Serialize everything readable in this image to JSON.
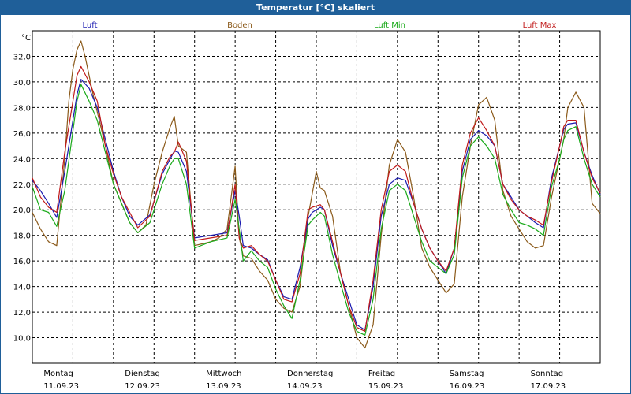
{
  "title": "Temperatur [°C] skaliert",
  "chart_data": {
    "type": "line",
    "title": "Temperatur [°C] skaliert",
    "ylabel": "°C",
    "ylim": [
      8,
      34
    ],
    "ytick_values": [
      10,
      12,
      14,
      16,
      18,
      20,
      22,
      24,
      26,
      28,
      30,
      32
    ],
    "ytick_labels": [
      "10,0",
      "12,0",
      "14,0",
      "16,0",
      "18,0",
      "20,0",
      "22,0",
      "24,0",
      "26,0",
      "28,0",
      "30,0",
      "32,0"
    ],
    "xlim": [
      0,
      7
    ],
    "x_unit": "days since Montag 11.09.23 00:00",
    "days": [
      {
        "name": "Montag",
        "date": "11.09.23"
      },
      {
        "name": "Dienstag",
        "date": "12.09.23"
      },
      {
        "name": "Mittwoch",
        "date": "13.09.23"
      },
      {
        "name": "Donnerstag",
        "date": "14.09.23"
      },
      {
        "name": "Freitag",
        "date": "15.09.23"
      },
      {
        "name": "Samstag",
        "date": "16.09.23"
      },
      {
        "name": "Sonntag",
        "date": "17.09.23"
      }
    ],
    "x_gridlines": [
      0.5,
      1,
      1.5,
      2,
      2.5,
      3,
      3.5,
      4,
      4.5,
      5,
      5.5,
      6,
      6.5,
      7
    ],
    "series": [
      {
        "name": "Luft",
        "color": "#1a1ab0",
        "x": [
          0,
          0.1,
          0.2,
          0.3,
          0.4,
          0.55,
          0.6,
          0.7,
          0.8,
          0.9,
          1.0,
          1.1,
          1.2,
          1.3,
          1.45,
          1.6,
          1.7,
          1.75,
          1.8,
          1.9,
          2.0,
          2.2,
          2.4,
          2.5,
          2.55,
          2.6,
          2.7,
          2.8,
          2.9,
          3.0,
          3.1,
          3.2,
          3.3,
          3.4,
          3.45,
          3.55,
          3.6,
          3.7,
          3.8,
          3.9,
          4.0,
          4.1,
          4.2,
          4.3,
          4.4,
          4.5,
          4.6,
          4.7,
          4.8,
          4.9,
          5.0,
          5.1,
          5.2,
          5.3,
          5.4,
          5.5,
          5.6,
          5.7,
          5.8,
          5.9,
          6.0,
          6.1,
          6.2,
          6.3,
          6.4,
          6.5,
          6.55,
          6.6,
          6.7,
          6.8,
          6.9,
          7.0
        ],
        "values": [
          22.3,
          21.5,
          20.5,
          19.4,
          23.0,
          29.0,
          30.2,
          29.5,
          28.0,
          25.5,
          23.0,
          21.0,
          19.5,
          18.8,
          19.6,
          22.8,
          24.0,
          24.6,
          24.5,
          23.0,
          17.8,
          18.0,
          18.2,
          21.5,
          19.5,
          17.2,
          17.0,
          16.5,
          16.1,
          14.5,
          13.2,
          13.0,
          15.5,
          19.3,
          19.8,
          20.2,
          20.0,
          17.2,
          15.0,
          13.0,
          11.0,
          10.6,
          14.0,
          19.5,
          22.0,
          22.5,
          22.3,
          20.5,
          18.5,
          17.0,
          16.0,
          15.0,
          17.0,
          23.0,
          25.5,
          26.2,
          25.8,
          25.0,
          22.0,
          21.0,
          20.0,
          19.5,
          19.0,
          18.6,
          22.5,
          25.0,
          26.3,
          26.7,
          26.8,
          24.5,
          22.7,
          21.2
        ]
      },
      {
        "name": "Boden",
        "color": "#8b5a1a",
        "x": [
          0,
          0.1,
          0.2,
          0.3,
          0.4,
          0.45,
          0.5,
          0.55,
          0.6,
          0.65,
          0.75,
          0.9,
          1.0,
          1.1,
          1.2,
          1.3,
          1.4,
          1.5,
          1.6,
          1.7,
          1.75,
          1.8,
          1.9,
          2.0,
          2.2,
          2.3,
          2.4,
          2.5,
          2.55,
          2.6,
          2.7,
          2.8,
          2.9,
          3.0,
          3.1,
          3.2,
          3.3,
          3.4,
          3.5,
          3.55,
          3.6,
          3.7,
          3.8,
          3.9,
          4.0,
          4.1,
          4.2,
          4.3,
          4.4,
          4.5,
          4.6,
          4.7,
          4.8,
          4.9,
          5.0,
          5.1,
          5.2,
          5.3,
          5.4,
          5.5,
          5.6,
          5.7,
          5.8,
          5.9,
          6.0,
          6.1,
          6.2,
          6.3,
          6.4,
          6.5,
          6.55,
          6.6,
          6.7,
          6.8,
          6.9,
          7.0
        ],
        "values": [
          19.8,
          18.5,
          17.5,
          17.2,
          24.0,
          28.5,
          31.0,
          32.5,
          33.2,
          32.0,
          29.0,
          25.0,
          22.0,
          20.5,
          19.0,
          18.2,
          18.8,
          22.0,
          24.5,
          26.5,
          27.3,
          25.0,
          24.5,
          17.2,
          17.5,
          17.8,
          18.5,
          23.4,
          17.8,
          16.4,
          16.2,
          15.2,
          14.5,
          13.0,
          12.3,
          12.0,
          14.0,
          19.5,
          23.0,
          21.7,
          21.5,
          19.5,
          15.0,
          12.5,
          10.0,
          9.2,
          11.0,
          18.0,
          23.5,
          25.5,
          24.5,
          21.0,
          17.0,
          15.5,
          14.5,
          13.5,
          14.2,
          21.0,
          25.0,
          28.2,
          28.8,
          27.0,
          21.5,
          19.5,
          18.5,
          17.5,
          17.0,
          17.2,
          21.0,
          24.0,
          25.5,
          28.0,
          29.2,
          28.0,
          20.5,
          19.7
        ]
      },
      {
        "name": "Luft Min",
        "color": "#1aaa1a",
        "x": [
          0,
          0.1,
          0.2,
          0.3,
          0.4,
          0.55,
          0.6,
          0.7,
          0.8,
          0.9,
          1.0,
          1.1,
          1.2,
          1.3,
          1.45,
          1.6,
          1.7,
          1.75,
          1.8,
          1.9,
          2.0,
          2.2,
          2.4,
          2.5,
          2.55,
          2.6,
          2.7,
          2.8,
          2.9,
          3.0,
          3.1,
          3.2,
          3.3,
          3.4,
          3.45,
          3.55,
          3.6,
          3.7,
          3.8,
          3.9,
          4.0,
          4.1,
          4.2,
          4.3,
          4.4,
          4.5,
          4.6,
          4.7,
          4.8,
          4.9,
          5.0,
          5.1,
          5.2,
          5.3,
          5.4,
          5.5,
          5.6,
          5.7,
          5.8,
          5.9,
          6.0,
          6.1,
          6.2,
          6.3,
          6.4,
          6.5,
          6.55,
          6.6,
          6.7,
          6.8,
          6.9,
          7.0
        ],
        "values": [
          21.8,
          20.0,
          19.8,
          18.7,
          21.5,
          28.5,
          29.8,
          28.5,
          27.0,
          24.5,
          22.0,
          20.5,
          19.0,
          18.2,
          19.0,
          22.0,
          23.5,
          24.0,
          24.0,
          22.0,
          17.0,
          17.5,
          17.8,
          20.8,
          18.5,
          16.0,
          16.8,
          16.0,
          15.5,
          13.8,
          12.5,
          11.5,
          14.5,
          18.8,
          19.2,
          19.8,
          19.5,
          16.5,
          14.2,
          12.0,
          10.5,
          10.2,
          13.0,
          18.5,
          21.5,
          22.0,
          21.5,
          19.5,
          17.5,
          16.0,
          15.5,
          15.0,
          16.5,
          22.5,
          25.0,
          25.7,
          25.0,
          24.0,
          21.2,
          20.0,
          19.0,
          18.8,
          18.5,
          18.0,
          21.8,
          24.0,
          25.5,
          26.2,
          26.5,
          24.0,
          22.0,
          21.0
        ]
      },
      {
        "name": "Luft Max",
        "color": "#c01a1a",
        "x": [
          0,
          0.1,
          0.2,
          0.3,
          0.4,
          0.55,
          0.6,
          0.7,
          0.8,
          0.9,
          1.0,
          1.1,
          1.2,
          1.3,
          1.45,
          1.6,
          1.7,
          1.75,
          1.8,
          1.9,
          2.0,
          2.2,
          2.4,
          2.5,
          2.55,
          2.6,
          2.7,
          2.8,
          2.9,
          3.0,
          3.1,
          3.2,
          3.3,
          3.4,
          3.45,
          3.55,
          3.6,
          3.7,
          3.8,
          3.9,
          4.0,
          4.1,
          4.2,
          4.3,
          4.4,
          4.5,
          4.6,
          4.7,
          4.8,
          4.9,
          5.0,
          5.1,
          5.2,
          5.3,
          5.4,
          5.5,
          5.6,
          5.7,
          5.8,
          5.9,
          6.0,
          6.1,
          6.2,
          6.3,
          6.4,
          6.5,
          6.55,
          6.6,
          6.7,
          6.8,
          6.9,
          7.0
        ],
        "values": [
          22.5,
          21.0,
          20.2,
          19.8,
          24.5,
          30.5,
          31.2,
          30.0,
          28.5,
          25.0,
          22.8,
          21.0,
          19.8,
          18.6,
          19.5,
          23.0,
          24.2,
          24.5,
          25.3,
          23.8,
          17.6,
          17.8,
          18.0,
          22.0,
          17.8,
          17.0,
          17.2,
          16.5,
          16.0,
          14.5,
          13.0,
          12.8,
          15.0,
          20.0,
          20.2,
          20.4,
          20.0,
          17.5,
          15.0,
          12.5,
          10.8,
          10.5,
          14.5,
          20.0,
          23.0,
          23.5,
          23.0,
          20.5,
          18.5,
          17.0,
          16.0,
          15.2,
          17.0,
          23.5,
          26.0,
          27.2,
          26.2,
          25.0,
          22.0,
          20.8,
          20.0,
          19.5,
          19.2,
          18.8,
          22.2,
          25.0,
          26.5,
          27.0,
          27.0,
          24.5,
          22.5,
          21.3
        ]
      }
    ]
  }
}
